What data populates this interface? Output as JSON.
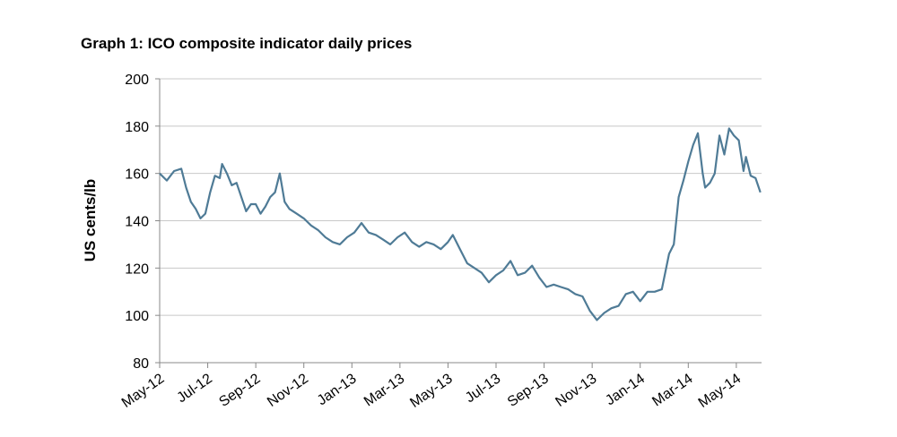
{
  "chart_data": {
    "type": "line",
    "title": "Graph 1: ICO composite indicator daily prices",
    "y_label": "US cents/lb",
    "x": [
      0,
      0.3,
      0.6,
      0.9,
      1.1,
      1.3,
      1.5,
      1.7,
      1.9,
      2.1,
      2.3,
      2.5,
      2.6,
      2.8,
      3.0,
      3.2,
      3.4,
      3.6,
      3.8,
      4.0,
      4.2,
      4.4,
      4.6,
      4.8,
      5.0,
      5.2,
      5.4,
      5.7,
      6.0,
      6.3,
      6.6,
      6.9,
      7.2,
      7.5,
      7.8,
      8.1,
      8.4,
      8.7,
      9.0,
      9.3,
      9.6,
      9.9,
      10.2,
      10.5,
      10.8,
      11.1,
      11.4,
      11.7,
      12.0,
      12.2,
      12.5,
      12.8,
      13.1,
      13.4,
      13.7,
      14.0,
      14.3,
      14.6,
      14.9,
      15.2,
      15.5,
      15.8,
      16.1,
      16.4,
      16.7,
      17.0,
      17.3,
      17.6,
      17.9,
      18.2,
      18.5,
      18.8,
      19.1,
      19.4,
      19.7,
      20.0,
      20.3,
      20.6,
      20.9,
      21.2,
      21.4,
      21.6,
      21.8,
      22.0,
      22.2,
      22.4,
      22.6,
      22.7,
      22.9,
      23.1,
      23.3,
      23.5,
      23.7,
      23.9,
      24.1,
      24.3,
      24.4,
      24.6,
      24.8,
      25.0
    ],
    "series": [
      {
        "name": "ICO composite indicator",
        "color": "#4f7b96",
        "values": [
          160,
          157,
          161,
          162,
          154,
          148,
          145,
          141,
          143,
          152,
          159,
          158,
          164,
          160,
          155,
          156,
          150,
          144,
          147,
          147,
          143,
          146,
          150,
          152,
          160,
          148,
          145,
          143,
          141,
          138,
          136,
          133,
          131,
          130,
          133,
          135,
          139,
          135,
          134,
          132,
          130,
          133,
          135,
          131,
          129,
          131,
          130,
          128,
          131,
          134,
          128,
          122,
          120,
          118,
          114,
          117,
          119,
          123,
          117,
          118,
          121,
          116,
          112,
          113,
          112,
          111,
          109,
          108,
          102,
          98,
          101,
          103,
          104,
          109,
          110,
          106,
          110,
          110,
          111,
          126,
          130,
          150,
          157,
          165,
          172,
          177,
          160,
          154,
          156,
          160,
          176,
          168,
          179,
          176,
          174,
          161,
          167,
          159,
          158,
          152
        ]
      }
    ],
    "xlim": [
      0,
      25.05
    ],
    "xticks": [
      {
        "value": 0,
        "label": "May-12"
      },
      {
        "value": 2,
        "label": "Jul-12"
      },
      {
        "value": 4,
        "label": "Sep-12"
      },
      {
        "value": 6,
        "label": "Nov-12"
      },
      {
        "value": 8,
        "label": "Jan-13"
      },
      {
        "value": 10,
        "label": "Mar-13"
      },
      {
        "value": 12,
        "label": "May-13"
      },
      {
        "value": 14,
        "label": "Jul-13"
      },
      {
        "value": 16,
        "label": "Sep-13"
      },
      {
        "value": 18,
        "label": "Nov-13"
      },
      {
        "value": 20,
        "label": "Jan-14"
      },
      {
        "value": 22,
        "label": "Mar-14"
      },
      {
        "value": 24,
        "label": "May-14"
      }
    ],
    "ylim": [
      80,
      200
    ],
    "yticks": [
      80,
      100,
      120,
      140,
      160,
      180,
      200
    ],
    "grid": true
  }
}
